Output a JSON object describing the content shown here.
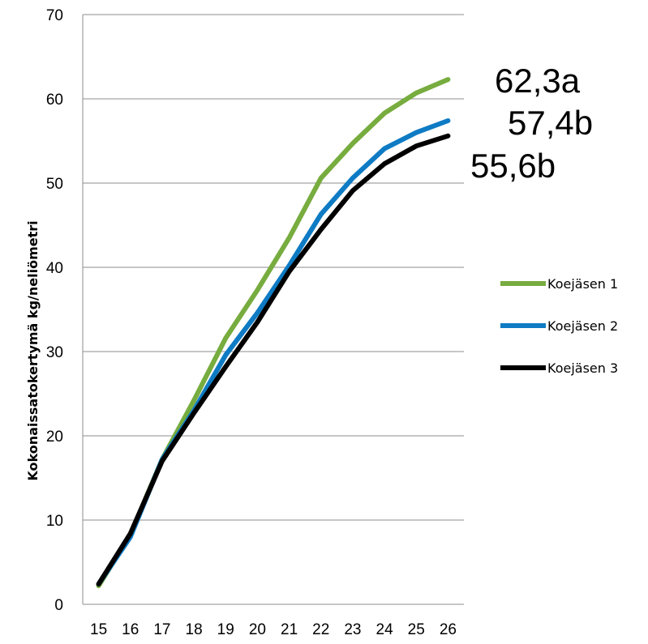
{
  "chart_data": {
    "type": "line",
    "title": "",
    "xlabel": "",
    "ylabel": "Kokonaissatokertymä kg/neliömetri",
    "x": [
      15,
      16,
      17,
      18,
      19,
      20,
      21,
      22,
      23,
      24,
      25,
      26
    ],
    "xtick_labels": [
      "15",
      "16",
      "17",
      "18",
      "19",
      "20",
      "21",
      "22",
      "23",
      "24",
      "25",
      "26"
    ],
    "ylim": [
      0,
      70
    ],
    "yticks": [
      0,
      10,
      20,
      30,
      40,
      50,
      60,
      70
    ],
    "ytick_labels": [
      "0",
      "10",
      "20",
      "30",
      "40",
      "50",
      "60",
      "70"
    ],
    "grid": true,
    "legend_position": "right",
    "series": [
      {
        "name": "Koejäsen 1",
        "color": "#77ac3f",
        "values": [
          2.2,
          8.3,
          17.2,
          24.2,
          31.6,
          37.3,
          43.5,
          50.6,
          54.7,
          58.3,
          60.7,
          62.3
        ]
      },
      {
        "name": "Koejäsen 2",
        "color": "#0e7bc4",
        "values": [
          2.4,
          8.0,
          17.2,
          23.0,
          29.6,
          34.6,
          40.2,
          46.3,
          50.6,
          54.1,
          56.0,
          57.4
        ]
      },
      {
        "name": "Koejäsen 3",
        "color": "#000000",
        "values": [
          2.4,
          8.4,
          17.0,
          22.7,
          28.2,
          33.5,
          39.5,
          44.5,
          49.1,
          52.3,
          54.4,
          55.6
        ]
      }
    ],
    "annotations": [
      {
        "text": "62,3a"
      },
      {
        "text": "57,4b"
      },
      {
        "text": "55,6b"
      }
    ]
  }
}
